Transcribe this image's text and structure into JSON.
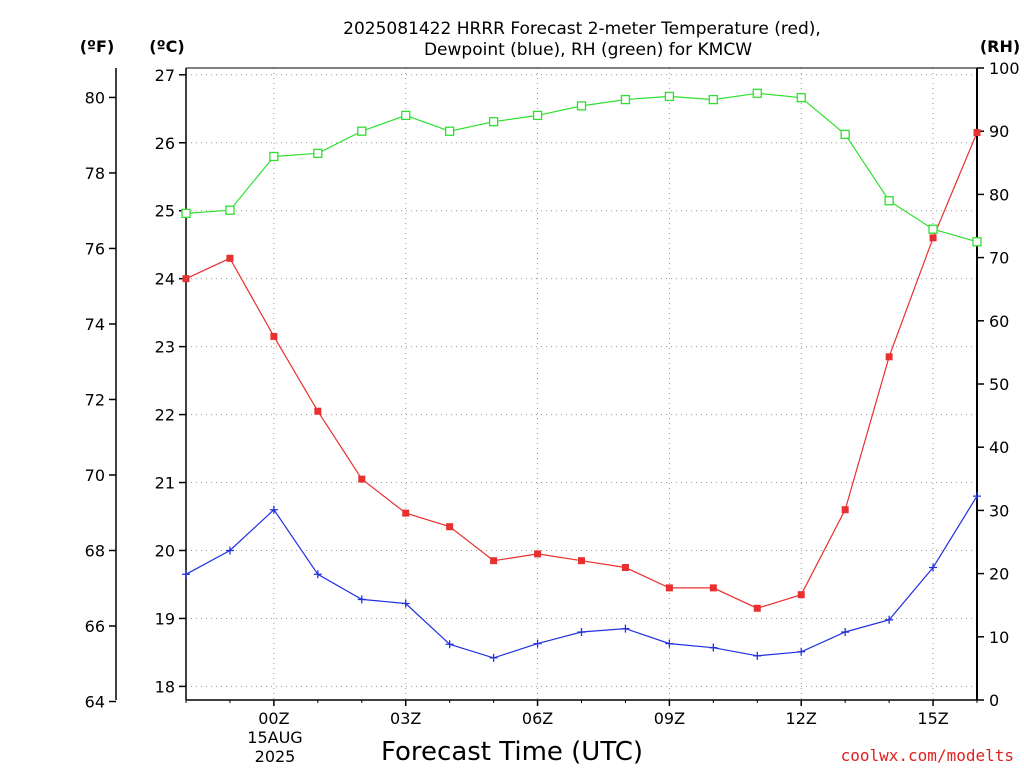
{
  "chart_data": {
    "type": "line",
    "title_lines": [
      "2025081422 HRRR Forecast 2-meter Temperature (red),",
      "Dewpoint (blue), RH (green) for KMCW"
    ],
    "xlabel": "Forecast Time (UTC)",
    "date_lines": [
      "15AUG",
      "2025"
    ],
    "credit": "coolwx.com/modelts",
    "units": {
      "left_f": "(ºF)",
      "left_c": "(ºC)",
      "right": "(RH)"
    },
    "x": [
      "2025-08-14 22Z",
      "2025-08-14 23Z",
      "2025-08-15 00Z",
      "2025-08-15 01Z",
      "2025-08-15 02Z",
      "2025-08-15 03Z",
      "2025-08-15 04Z",
      "2025-08-15 05Z",
      "2025-08-15 06Z",
      "2025-08-15 07Z",
      "2025-08-15 08Z",
      "2025-08-15 09Z",
      "2025-08-15 10Z",
      "2025-08-15 11Z",
      "2025-08-15 12Z",
      "2025-08-15 13Z",
      "2025-08-15 14Z",
      "2025-08-15 15Z",
      "2025-08-15 16Z"
    ],
    "x_ticks": [
      "00Z",
      "03Z",
      "06Z",
      "09Z",
      "12Z",
      "15Z"
    ],
    "x_tick_hours": [
      0,
      3,
      6,
      9,
      12,
      15
    ],
    "x_range_hours": [
      -2,
      16
    ],
    "series": [
      {
        "name": "Temperature",
        "axis": "celsius",
        "color": "#e83030",
        "marker": "filled-square",
        "values": [
          24.0,
          24.3,
          23.15,
          22.05,
          21.05,
          20.55,
          20.35,
          19.85,
          19.95,
          19.85,
          19.75,
          19.45,
          19.45,
          19.15,
          19.35,
          20.6,
          22.85,
          24.6,
          26.15
        ]
      },
      {
        "name": "Dewpoint",
        "axis": "celsius",
        "color": "#2030e0",
        "marker": "plus",
        "values": [
          19.65,
          20.0,
          20.6,
          19.65,
          19.28,
          19.22,
          18.62,
          18.42,
          18.63,
          18.8,
          18.85,
          18.63,
          18.57,
          18.45,
          18.51,
          18.8,
          18.98,
          19.75,
          20.8
        ]
      },
      {
        "name": "RH",
        "axis": "rh",
        "color": "#30e030",
        "marker": "open-square",
        "values": [
          77,
          77.5,
          86,
          86.5,
          90,
          92.5,
          90,
          91.5,
          92.5,
          94,
          95,
          95.5,
          95,
          96,
          95.3,
          89.5,
          79,
          74.5,
          72.5
        ]
      }
    ],
    "ylim_celsius": [
      17.8,
      27.1
    ],
    "yticks_celsius": [
      18,
      19,
      20,
      21,
      22,
      23,
      24,
      25,
      26,
      27
    ],
    "yticks_fahrenheit": [
      64,
      66,
      68,
      70,
      72,
      74,
      76,
      78,
      80
    ],
    "ylim_rh": [
      0,
      100
    ],
    "yticks_rh": [
      0,
      10,
      20,
      30,
      40,
      50,
      60,
      70,
      80,
      90,
      100
    ],
    "grid": true,
    "grid_style": "dotted"
  }
}
